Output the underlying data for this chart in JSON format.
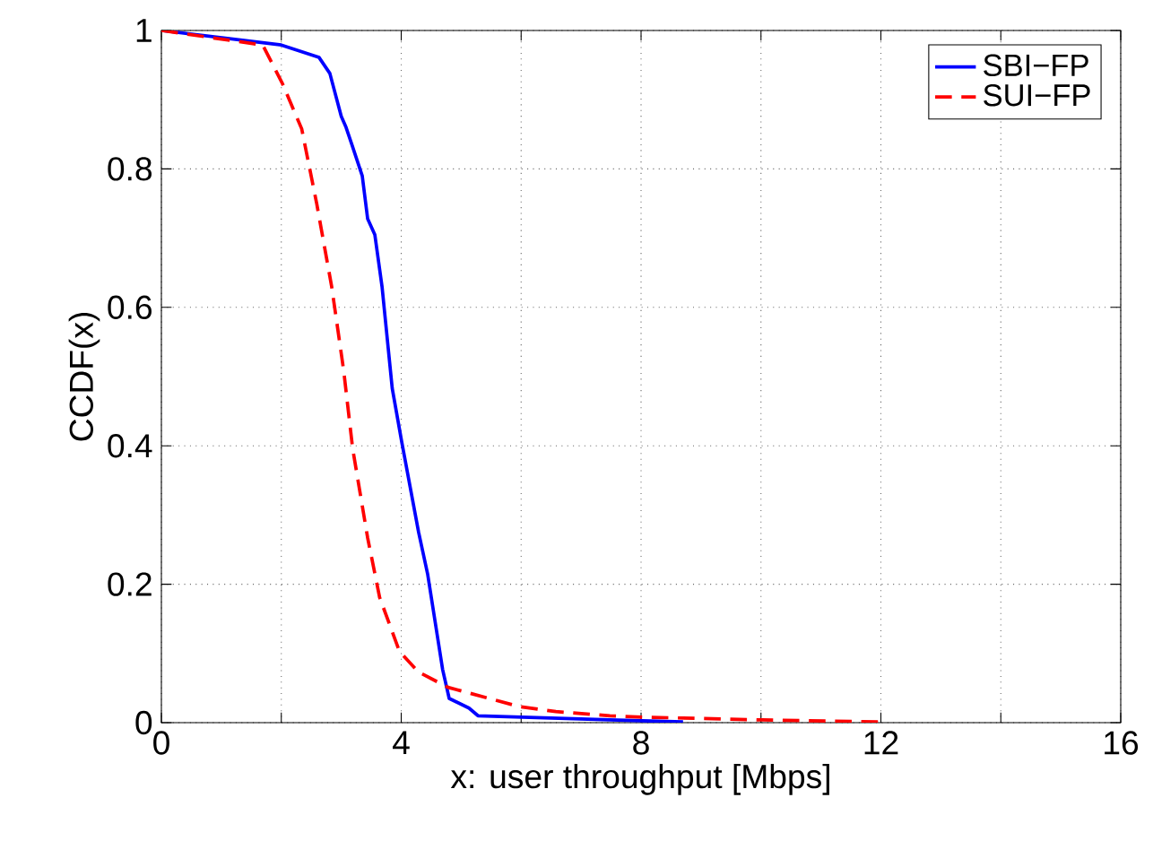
{
  "chart_data": {
    "type": "line",
    "xlabel": "x: user throughput [Mbps]",
    "ylabel": "CCDF(x)",
    "xlim": [
      0,
      16
    ],
    "ylim": [
      0,
      1
    ],
    "xticks": [
      0,
      {
        "value": 2,
        "label": null
      },
      4,
      {
        "value": 6,
        "label": null
      },
      8,
      {
        "value": 10,
        "label": null
      },
      12,
      {
        "value": 14,
        "label": null
      },
      16
    ],
    "yticks": [
      0,
      0.2,
      0.4,
      0.6,
      0.8,
      1
    ],
    "grid": true,
    "legend": "top right",
    "marker": "none",
    "series": [
      {
        "name": "SBI−FP",
        "color": "#0000ff",
        "line_style": "solid",
        "x": [
          0,
          2.0,
          2.63,
          2.81,
          3.0,
          3.08,
          3.17,
          3.35,
          3.44,
          3.56,
          3.68,
          3.85,
          4.01,
          4.29,
          4.44,
          4.69,
          4.8,
          5.13,
          5.28,
          7.48,
          8.7
        ],
        "values": [
          1,
          0.979,
          0.961,
          0.938,
          0.876,
          0.86,
          0.837,
          0.79,
          0.728,
          0.705,
          0.63,
          0.483,
          0.405,
          0.275,
          0.215,
          0.077,
          0.035,
          0.021,
          0.01,
          0.004,
          0.001
        ]
      },
      {
        "name": "SUI−FP",
        "color": "#ff0000",
        "line_style": "dashed",
        "x": [
          0,
          1.69,
          2.02,
          2.34,
          2.59,
          2.84,
          3.04,
          3.19,
          3.44,
          3.64,
          3.97,
          4.29,
          4.78,
          5.98,
          6.58,
          7.48,
          8.02,
          10.02,
          12.06
        ],
        "values": [
          1,
          0.979,
          0.923,
          0.858,
          0.75,
          0.63,
          0.509,
          0.396,
          0.267,
          0.181,
          0.103,
          0.073,
          0.051,
          0.023,
          0.016,
          0.01,
          0.008,
          0.004,
          0.001
        ]
      }
    ]
  }
}
